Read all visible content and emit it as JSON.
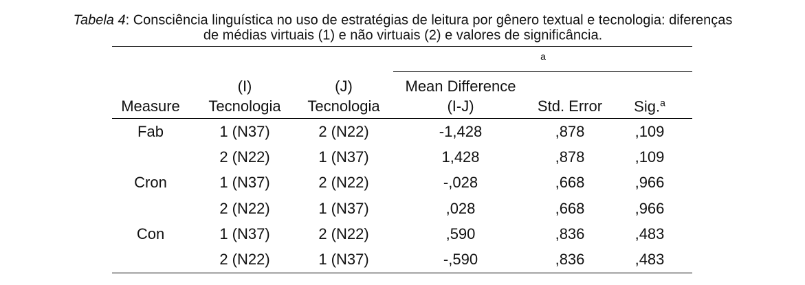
{
  "caption": {
    "label": "Tabela 4",
    "lines": [
      ": Consciência linguística no uso de estratégias de leitura por gênero textual e tecnologia: diferenças",
      "de médias virtuais (1) e não virtuais (2) e valores de significância."
    ]
  },
  "table": {
    "span_note": "a",
    "columns": [
      {
        "lines": [
          "Measure"
        ]
      },
      {
        "lines": [
          "(I)",
          "Tecnologia"
        ]
      },
      {
        "lines": [
          "(J)",
          "Tecnologia"
        ]
      },
      {
        "lines": [
          "Mean Difference",
          "(I-J)"
        ]
      },
      {
        "lines": [
          "Std. Error"
        ]
      },
      {
        "lines": [
          "Sig."
        ],
        "sup": "a"
      }
    ],
    "rows": [
      [
        "Fab",
        "1 (N37)",
        "2 (N22)",
        "-1,428",
        ",878",
        ",109"
      ],
      [
        null,
        "2 (N22)",
        "1 (N37)",
        "1,428",
        ",878",
        ",109"
      ],
      [
        "Cron",
        "1 (N37)",
        "2 (N22)",
        "-,028",
        ",668",
        ",966"
      ],
      [
        null,
        "2 (N22)",
        "1 (N37)",
        ",028",
        ",668",
        ",966"
      ],
      [
        "Con",
        "1 (N37)",
        "2 (N22)",
        ",590",
        ",836",
        ",483"
      ],
      [
        null,
        "2 (N22)",
        "1 (N37)",
        "-,590",
        ",836",
        ",483"
      ]
    ]
  }
}
